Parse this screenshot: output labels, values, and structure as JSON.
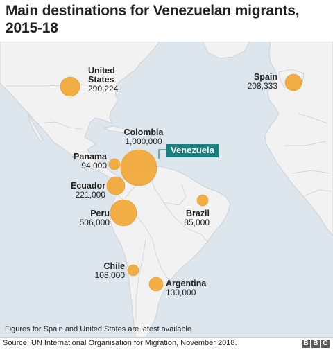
{
  "title": "Main destinations for Venezuelan migrants, 2015-18",
  "highlight_label": "Venezuela",
  "destinations": [
    {
      "name": "United States",
      "name_lines": [
        "United",
        "States"
      ],
      "value": "290,224",
      "count": 290224
    },
    {
      "name": "Spain",
      "value": "208,333",
      "count": 208333
    },
    {
      "name": "Colombia",
      "value": "1,000,000",
      "count": 1000000
    },
    {
      "name": "Panama",
      "value": "94,000",
      "count": 94000
    },
    {
      "name": "Ecuador",
      "value": "221,000",
      "count": 221000
    },
    {
      "name": "Peru",
      "value": "506,000",
      "count": 506000
    },
    {
      "name": "Brazil",
      "value": "85,000",
      "count": 85000
    },
    {
      "name": "Chile",
      "value": "108,000",
      "count": 108000
    },
    {
      "name": "Argentina",
      "value": "130,000",
      "count": 130000
    }
  ],
  "footnote": "Figures for Spain and United States are latest available",
  "source": "Source: UN International Organisation for Migration, November 2018.",
  "logo": [
    "B",
    "B",
    "C"
  ],
  "colors": {
    "sea": "#dde6ec",
    "land": "#f2f2f2",
    "border": "#c8ccd0",
    "bubble": "#f2a93b",
    "highlight": "#1b7f7f",
    "text": "#222222"
  }
}
